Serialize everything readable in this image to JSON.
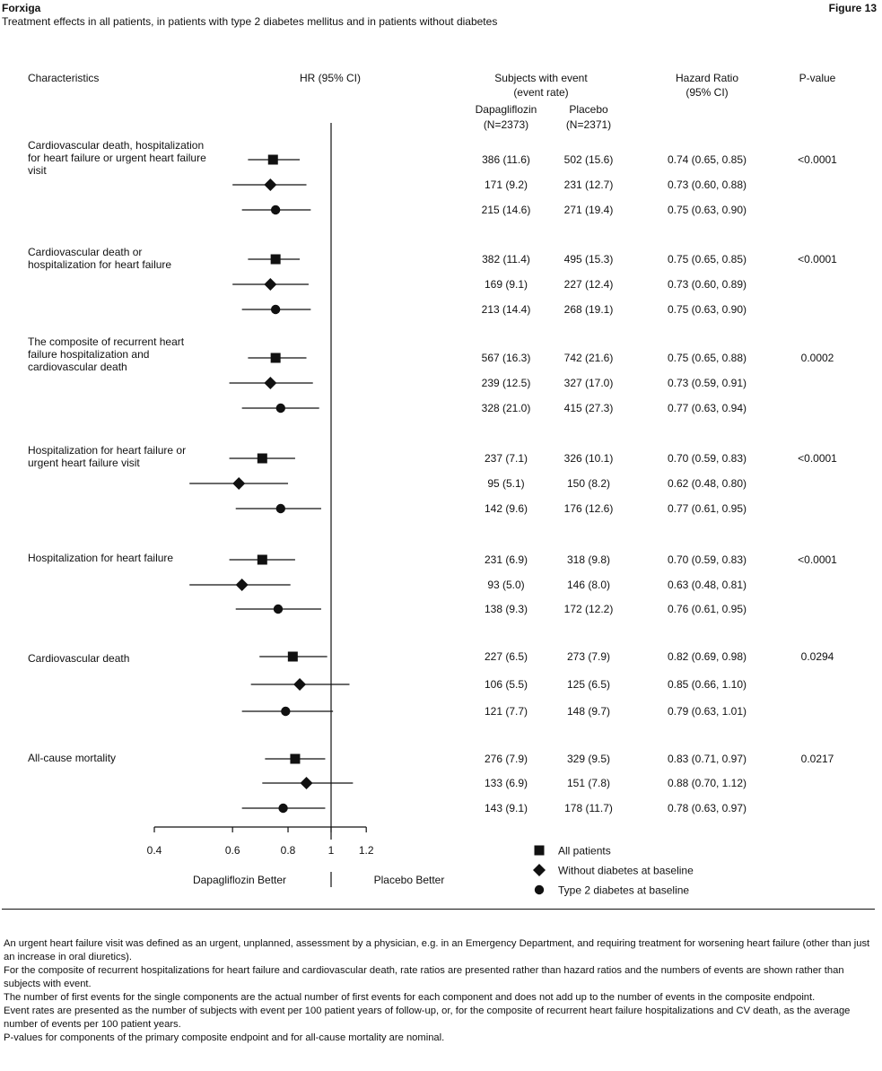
{
  "header": {
    "left": "Forxiga",
    "right": "Figure 13",
    "subtitle": "Treatment effects in all patients, in patients with type 2 diabetes mellitus and in patients without diabetes"
  },
  "columns": {
    "characteristics": "Characteristics",
    "hr_ci": "HR (95% CI)",
    "subjects_line1": "Subjects with event",
    "subjects_line2": "(event rate)",
    "dapa_name": "Dapagliflozin",
    "dapa_n": "(N=2373)",
    "placebo_name": "Placebo",
    "placebo_n": "(N=2371)",
    "hr_line1": "Hazard Ratio",
    "hr_line2": "(95% CI)",
    "pvalue": "P-value"
  },
  "chart_data": {
    "type": "forest",
    "xscale": "log",
    "xlim": [
      0.4,
      1.2
    ],
    "reference_line": 1,
    "ticks": [
      0.4,
      0.6,
      0.8,
      1,
      1.2
    ],
    "tick_labels": [
      "0.4",
      "0.6",
      "0.8",
      "1",
      "1.2"
    ],
    "direction_labels": {
      "left": "Dapagliflozin Better",
      "right": "Placebo Better"
    },
    "legend": [
      {
        "marker": "square",
        "label": "All patients"
      },
      {
        "marker": "diamond",
        "label": "Without diabetes at baseline"
      },
      {
        "marker": "circle",
        "label": "Type 2 diabetes at baseline"
      }
    ],
    "groups": [
      {
        "label": "Cardiovascular death, hospitalization for heart failure or urgent heart failure visit",
        "pvalue": "<0.0001",
        "rows": [
          {
            "marker": "square",
            "dapa": "386 (11.6)",
            "placebo": "502 (15.6)",
            "hr_text": "0.74 (0.65, 0.85)",
            "hr": 0.74,
            "lo": 0.65,
            "hi": 0.85
          },
          {
            "marker": "diamond",
            "dapa": "171 (9.2)",
            "placebo": "231 (12.7)",
            "hr_text": "0.73 (0.60, 0.88)",
            "hr": 0.73,
            "lo": 0.6,
            "hi": 0.88
          },
          {
            "marker": "circle",
            "dapa": "215 (14.6)",
            "placebo": "271 (19.4)",
            "hr_text": "0.75 (0.63, 0.90)",
            "hr": 0.75,
            "lo": 0.63,
            "hi": 0.9
          }
        ]
      },
      {
        "label": "Cardiovascular death or hospitalization for heart failure",
        "pvalue": "<0.0001",
        "rows": [
          {
            "marker": "square",
            "dapa": "382 (11.4)",
            "placebo": "495 (15.3)",
            "hr_text": "0.75 (0.65, 0.85)",
            "hr": 0.75,
            "lo": 0.65,
            "hi": 0.85
          },
          {
            "marker": "diamond",
            "dapa": "169 (9.1)",
            "placebo": "227 (12.4)",
            "hr_text": "0.73 (0.60, 0.89)",
            "hr": 0.73,
            "lo": 0.6,
            "hi": 0.89
          },
          {
            "marker": "circle",
            "dapa": "213 (14.4)",
            "placebo": "268 (19.1)",
            "hr_text": "0.75 (0.63, 0.90)",
            "hr": 0.75,
            "lo": 0.63,
            "hi": 0.9
          }
        ]
      },
      {
        "label": "The composite of recurrent heart failure hospitalization and cardiovascular death",
        "pvalue": "0.0002",
        "rows": [
          {
            "marker": "square",
            "dapa": "567 (16.3)",
            "placebo": "742 (21.6)",
            "hr_text": "0.75 (0.65, 0.88)",
            "hr": 0.75,
            "lo": 0.65,
            "hi": 0.88
          },
          {
            "marker": "diamond",
            "dapa": "239 (12.5)",
            "placebo": "327 (17.0)",
            "hr_text": "0.73 (0.59, 0.91)",
            "hr": 0.73,
            "lo": 0.59,
            "hi": 0.91
          },
          {
            "marker": "circle",
            "dapa": "328 (21.0)",
            "placebo": "415 (27.3)",
            "hr_text": "0.77 (0.63, 0.94)",
            "hr": 0.77,
            "lo": 0.63,
            "hi": 0.94
          }
        ]
      },
      {
        "label": "Hospitalization for heart failure or urgent heart failure visit",
        "pvalue": "<0.0001",
        "rows": [
          {
            "marker": "square",
            "dapa": "237 (7.1)",
            "placebo": "326 (10.1)",
            "hr_text": "0.70 (0.59, 0.83)",
            "hr": 0.7,
            "lo": 0.59,
            "hi": 0.83
          },
          {
            "marker": "diamond",
            "dapa": "95 (5.1)",
            "placebo": "150 (8.2)",
            "hr_text": "0.62 (0.48, 0.80)",
            "hr": 0.62,
            "lo": 0.48,
            "hi": 0.8
          },
          {
            "marker": "circle",
            "dapa": "142 (9.6)",
            "placebo": "176 (12.6)",
            "hr_text": "0.77 (0.61, 0.95)",
            "hr": 0.77,
            "lo": 0.61,
            "hi": 0.95
          }
        ]
      },
      {
        "label": "Hospitalization for heart failure",
        "pvalue": "<0.0001",
        "rows": [
          {
            "marker": "square",
            "dapa": "231 (6.9)",
            "placebo": "318 (9.8)",
            "hr_text": "0.70 (0.59, 0.83)",
            "hr": 0.7,
            "lo": 0.59,
            "hi": 0.83
          },
          {
            "marker": "diamond",
            "dapa": "93 (5.0)",
            "placebo": "146 (8.0)",
            "hr_text": "0.63 (0.48, 0.81)",
            "hr": 0.63,
            "lo": 0.48,
            "hi": 0.81
          },
          {
            "marker": "circle",
            "dapa": "138 (9.3)",
            "placebo": "172 (12.2)",
            "hr_text": "0.76 (0.61, 0.95)",
            "hr": 0.76,
            "lo": 0.61,
            "hi": 0.95
          }
        ]
      },
      {
        "label": "Cardiovascular death",
        "pvalue": "0.0294",
        "rows": [
          {
            "marker": "square",
            "dapa": "227 (6.5)",
            "placebo": "273 (7.9)",
            "hr_text": "0.82 (0.69, 0.98)",
            "hr": 0.82,
            "lo": 0.69,
            "hi": 0.98
          },
          {
            "marker": "diamond",
            "dapa": "106 (5.5)",
            "placebo": "125 (6.5)",
            "hr_text": "0.85 (0.66, 1.10)",
            "hr": 0.85,
            "lo": 0.66,
            "hi": 1.1
          },
          {
            "marker": "circle",
            "dapa": "121 (7.7)",
            "placebo": "148 (9.7)",
            "hr_text": "0.79 (0.63, 1.01)",
            "hr": 0.79,
            "lo": 0.63,
            "hi": 1.01
          }
        ]
      },
      {
        "label": "All-cause mortality",
        "pvalue": "0.0217",
        "rows": [
          {
            "marker": "square",
            "dapa": "276 (7.9)",
            "placebo": "329 (9.5)",
            "hr_text": "0.83 (0.71, 0.97)",
            "hr": 0.83,
            "lo": 0.71,
            "hi": 0.97
          },
          {
            "marker": "diamond",
            "dapa": "133 (6.9)",
            "placebo": "151 (7.8)",
            "hr_text": "0.88 (0.70, 1.12)",
            "hr": 0.88,
            "lo": 0.7,
            "hi": 1.12
          },
          {
            "marker": "circle",
            "dapa": "143 (9.1)",
            "placebo": "178 (11.7)",
            "hr_text": "0.78 (0.63, 0.97)",
            "hr": 0.78,
            "lo": 0.63,
            "hi": 0.97
          }
        ]
      }
    ]
  },
  "footnotes": [
    "An urgent heart failure visit was defined as an urgent, unplanned, assessment by a physician, e.g. in an Emergency Department, and requiring treatment for worsening heart failure (other than just an increase in oral diuretics).",
    "For the composite of recurrent hospitalizations for heart failure and cardiovascular death, rate ratios are presented rather than hazard ratios and the numbers of events are shown rather than subjects with event.",
    "The number of first events for the single components are the actual number of first events for each component and does not add up to the number of events in the composite endpoint.",
    "Event rates are presented as the number of subjects with event per 100 patient years of follow-up, or, for the composite of recurrent heart failure hospitalizations and CV death, as the average number of events per 100 patient years.",
    "P-values for components of the primary composite endpoint and for all-cause mortality are nominal."
  ]
}
